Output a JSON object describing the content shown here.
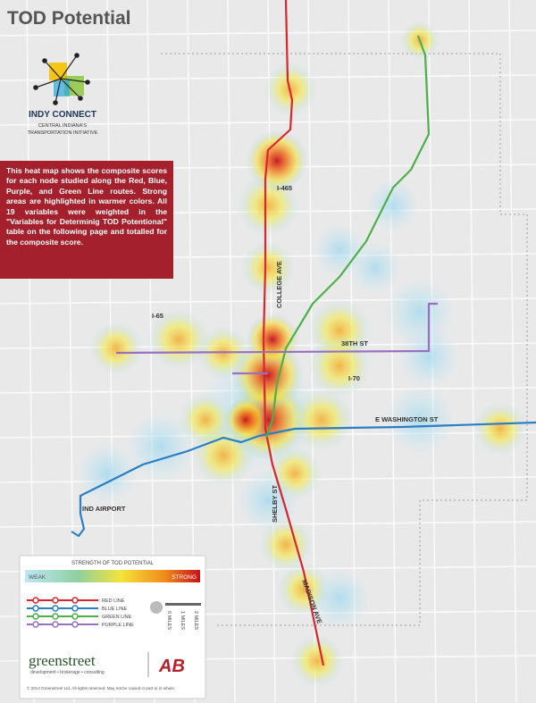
{
  "header": {
    "title": "TOD Potential",
    "logo_name": "INDY CONNECT",
    "logo_subtitle_1": "CENTRAL INDIANA'S",
    "logo_subtitle_2": "TRANSPORTATION INITIATIVE"
  },
  "description": "This heat map shows the composite scores for each node studied along the Red, Blue, Purple, and Green Line routes. Strong areas are highlighted in warmer colors. All 19 variables were weighted in the \"Variables for Determinig TOD Potentional\" table on the following page and totalled for the composite score.",
  "map_labels": [
    "I-465",
    "COLLEGE AVE",
    "I-65",
    "38TH ST",
    "I-70",
    "E WASHINGTON ST",
    "IND AIRPORT",
    "SHELBY ST",
    "MADISON AVE"
  ],
  "legend": {
    "title": "STRENGTH OF TOD POTENTIAL",
    "weak": "WEAK",
    "strong": "STRONG",
    "lines": [
      {
        "name": "RED LINE",
        "color": "#d7262e"
      },
      {
        "name": "BLUE LINE",
        "color": "#2a7fc4"
      },
      {
        "name": "GREEN LINE",
        "color": "#4daf4a"
      },
      {
        "name": "PURPLE LINE",
        "color": "#9a6fc0"
      }
    ],
    "scale": [
      "0 MILES",
      "1 MILES",
      "2 MILES"
    ]
  },
  "footer": {
    "brand": "greenstreet",
    "tagline": "development • brokerage • consulting",
    "partner": "AB",
    "copyright": "© 2014 Greenstreet Ltd. All rights reserved. May not be copied in part or in whole."
  }
}
